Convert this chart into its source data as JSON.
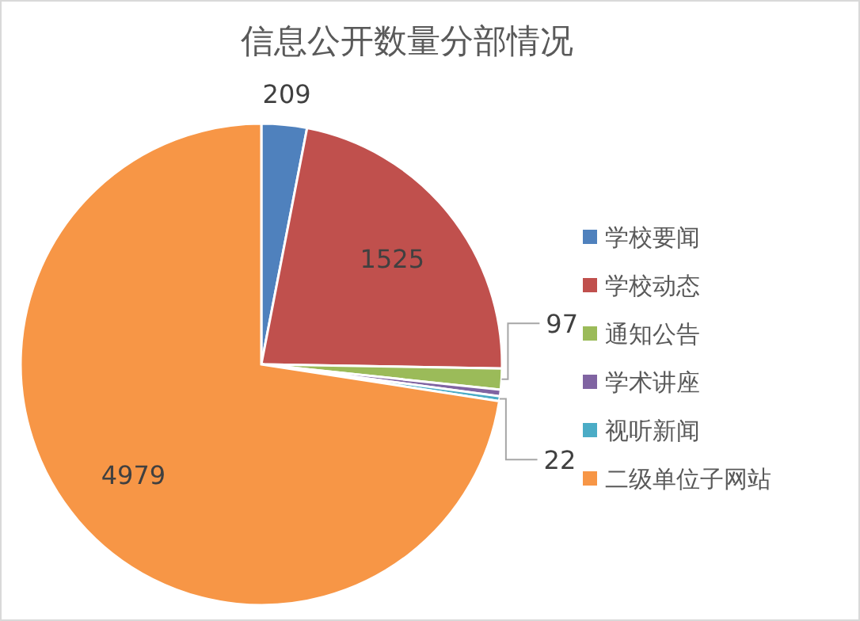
{
  "chart_data": {
    "type": "pie",
    "title": "信息公开数量分部情况",
    "categories": [
      "学校要闻",
      "学校动态",
      "通知公告",
      "学术讲座",
      "视听新闻",
      "二级单位子网站"
    ],
    "values": [
      209,
      1525,
      97,
      30,
      22,
      4979
    ],
    "value_labels": [
      "209",
      "1525",
      "97",
      null,
      "22",
      "4979"
    ],
    "colors": [
      "#4f81bd",
      "#c0504d",
      "#9bbb59",
      "#8064a2",
      "#4bacc6",
      "#f79646"
    ],
    "legend": "right"
  }
}
